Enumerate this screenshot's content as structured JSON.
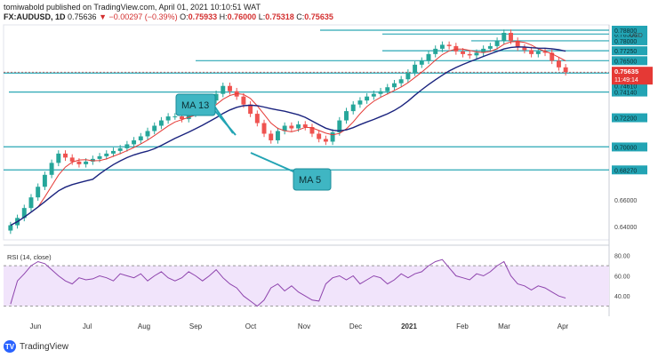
{
  "header": {
    "line1": "tomiwabold published on TradingView.com, April 01, 2021 10:10:51 WAT",
    "symbol": "FX:AUDUSD, 1D",
    "last": "0.75636",
    "change": "▼ −0.00297 (−0.39%)",
    "o_label": "O:",
    "o": "0.75933",
    "h_label": "H:",
    "h": "0.76000",
    "l_label": "L:",
    "l": "0.75318",
    "c_label": "C:",
    "c": "0.75635"
  },
  "footer": {
    "brand": "TradingView",
    "icon": "tv-logo-icon"
  },
  "annotations": {
    "ma13": "MA 13",
    "ma5": "MA 5"
  },
  "chart_data": {
    "type": "candlestick",
    "currency": "USD",
    "price_axis_ticks": [
      0.64,
      0.66,
      0.6827,
      0.7,
      0.722,
      0.7414,
      0.7461,
      0.7557,
      0.765,
      0.7725,
      0.78,
      0.7851,
      0.788
    ],
    "price_axis_tick_labels": [
      "0.64000",
      "0.66000",
      "0.68270",
      "0.70000",
      "0.72200",
      "0.74140",
      "0.74610",
      "0.75570",
      "0.76500",
      "0.77250",
      "0.78000",
      "0.78506",
      "0.78800"
    ],
    "current_price_label": "0.75635",
    "countdown_label": "11:49:14",
    "x_tick_labels": [
      "Jun",
      "Jul",
      "Aug",
      "Sep",
      "Oct",
      "Nov",
      "Dec",
      "2021",
      "Feb",
      "Mar",
      "Apr"
    ],
    "horizontal_levels": [
      0.7001,
      0.6827,
      0.7414,
      0.7557,
      0.765,
      0.78,
      0.7851,
      0.7725,
      0.788
    ],
    "close_series": [
      0.641,
      0.6465,
      0.654,
      0.662,
      0.67,
      0.679,
      0.688,
      0.695,
      0.692,
      0.689,
      0.687,
      0.689,
      0.691,
      0.693,
      0.695,
      0.697,
      0.699,
      0.702,
      0.705,
      0.708,
      0.712,
      0.716,
      0.72,
      0.723,
      0.723,
      0.721,
      0.725,
      0.728,
      0.731,
      0.735,
      0.74,
      0.746,
      0.742,
      0.738,
      0.732,
      0.725,
      0.718,
      0.71,
      0.705,
      0.712,
      0.716,
      0.714,
      0.717,
      0.715,
      0.71,
      0.706,
      0.704,
      0.711,
      0.72,
      0.727,
      0.732,
      0.735,
      0.738,
      0.74,
      0.742,
      0.745,
      0.748,
      0.751,
      0.756,
      0.762,
      0.765,
      0.77,
      0.774,
      0.777,
      0.776,
      0.772,
      0.77,
      0.769,
      0.771,
      0.774,
      0.776,
      0.78,
      0.786,
      0.78,
      0.775,
      0.773,
      0.77,
      0.772,
      0.771,
      0.765,
      0.76,
      0.7564
    ],
    "ma5_label": "MA 5",
    "ma13_label": "MA 13",
    "rsi": {
      "label": "RSI (14, close)",
      "ylim": [
        20,
        85
      ],
      "ticks": [
        40,
        60,
        80
      ],
      "tick_labels": [
        "40.00",
        "60.00",
        "80.00"
      ],
      "band": [
        30,
        70
      ],
      "values": [
        32,
        55,
        62,
        70,
        74,
        72,
        66,
        60,
        55,
        52,
        58,
        56,
        57,
        60,
        58,
        55,
        62,
        60,
        58,
        62,
        55,
        60,
        64,
        58,
        55,
        58,
        64,
        60,
        55,
        60,
        66,
        58,
        52,
        48,
        40,
        35,
        30,
        36,
        48,
        52,
        45,
        50,
        44,
        40,
        36,
        35,
        52,
        58,
        60,
        56,
        60,
        52,
        56,
        60,
        58,
        52,
        56,
        62,
        58,
        62,
        64,
        70,
        74,
        76,
        68,
        60,
        58,
        56,
        62,
        60,
        64,
        70,
        74,
        60,
        52,
        50,
        46,
        50,
        48,
        44,
        40,
        38
      ]
    }
  }
}
